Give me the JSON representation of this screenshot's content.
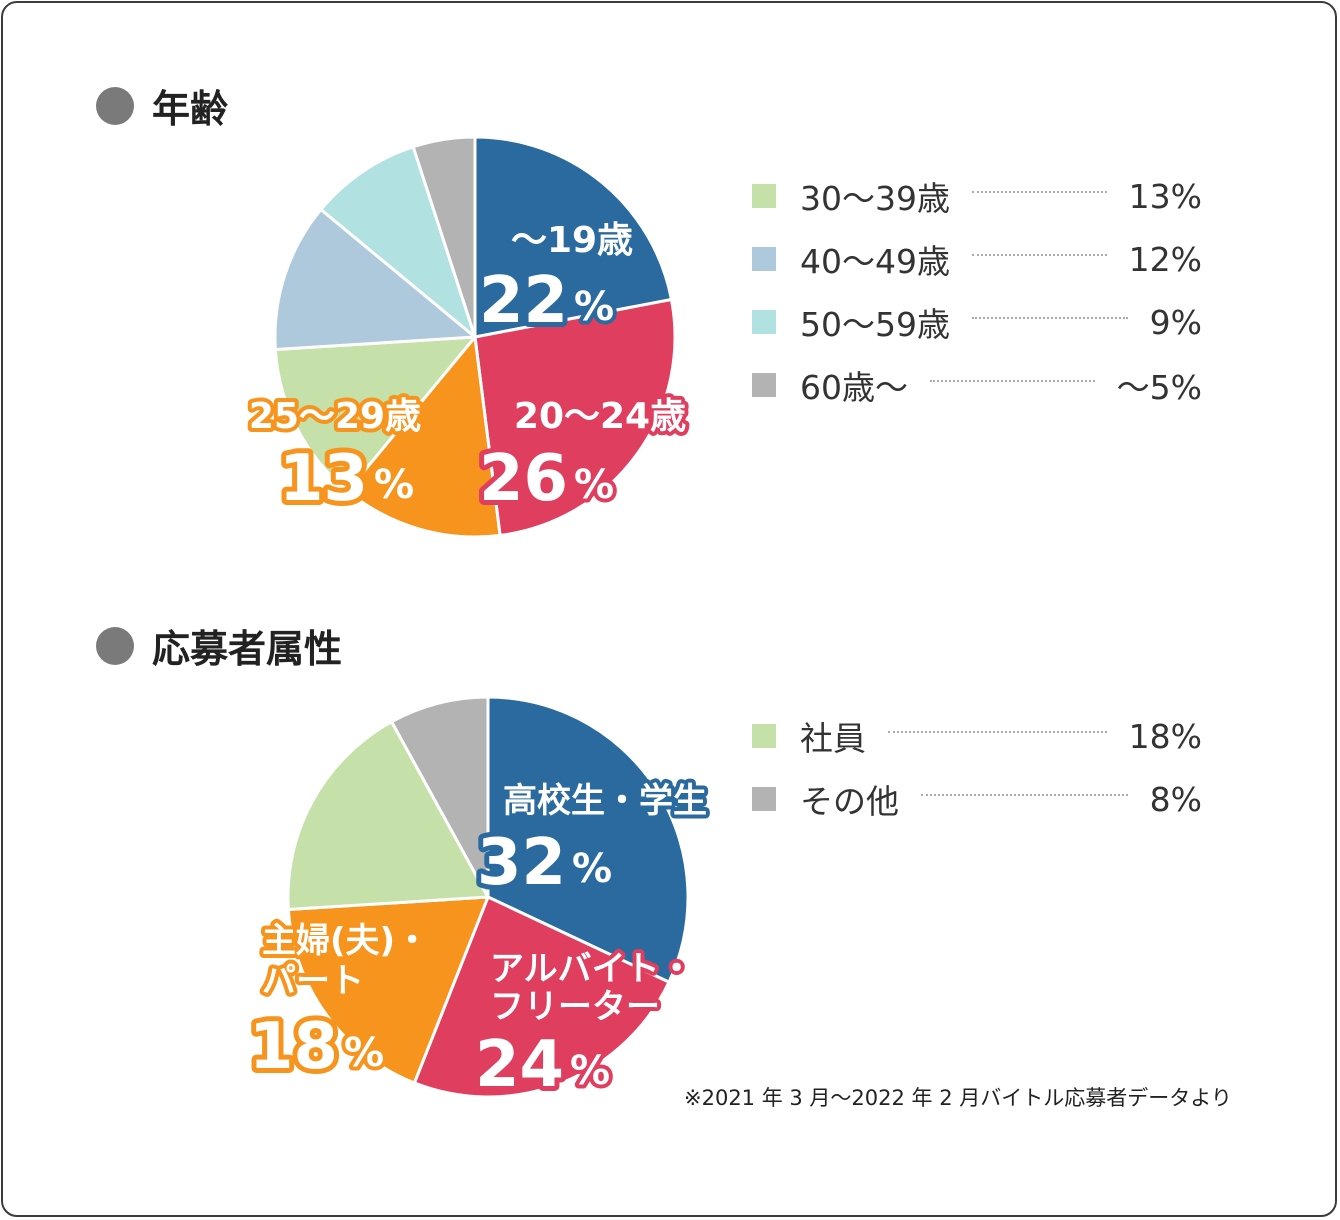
{
  "colors": {
    "blue": "#2a6a9e",
    "red": "#e03e5e",
    "orange": "#f7941d",
    "green": "#c5e1a9",
    "lightblue": "#aec8dc",
    "teal": "#b1e1e1",
    "gray": "#b3b3b3"
  },
  "age": {
    "title": "年齢",
    "legend": [
      {
        "label": "30〜39歳",
        "value": "13%",
        "color": "#c5e1a9"
      },
      {
        "label": "40〜49歳",
        "value": "12%",
        "color": "#aec8dc"
      },
      {
        "label": "50〜59歳",
        "value": "9%",
        "color": "#b1e1e1"
      },
      {
        "label": "60歳〜",
        "value": "〜5%",
        "color": "#b3b3b3"
      }
    ],
    "slice_labels": [
      {
        "name": "〜19歳",
        "pct": "22",
        "unit": "%"
      },
      {
        "name": "20〜24歳",
        "pct": "26",
        "unit": "%"
      },
      {
        "name": "25〜29歳",
        "pct": "13",
        "unit": "%"
      }
    ]
  },
  "attr": {
    "title": "応募者属性",
    "legend": [
      {
        "label": "社員",
        "value": "18%",
        "color": "#c5e1a9"
      },
      {
        "label": "その他",
        "value": "8%",
        "color": "#b3b3b3"
      }
    ],
    "slice_labels": [
      {
        "line1": "高校生・学生",
        "pct": "32",
        "unit": "%"
      },
      {
        "line1": "アルバイト・",
        "line2": "フリーター",
        "pct": "24",
        "unit": "%"
      },
      {
        "line1": "主婦(夫)・",
        "line2": "パート",
        "pct": "18",
        "unit": "%"
      }
    ]
  },
  "note": "※2021 年 3 月〜2022 年 2 月バイトル応募者データより",
  "chart_data": [
    {
      "type": "pie",
      "title": "年齢",
      "categories": [
        "〜19歳",
        "20〜24歳",
        "25〜29歳",
        "30〜39歳",
        "40〜49歳",
        "50〜59歳",
        "60歳〜"
      ],
      "values": [
        22,
        26,
        13,
        13,
        12,
        9,
        5
      ],
      "colors": [
        "#2a6a9e",
        "#e03e5e",
        "#f7941d",
        "#c5e1a9",
        "#aec8dc",
        "#b1e1e1",
        "#b3b3b3"
      ],
      "legend_position": "right"
    },
    {
      "type": "pie",
      "title": "応募者属性",
      "categories": [
        "高校生・学生",
        "アルバイト・フリーター",
        "主婦(夫)・パート",
        "社員",
        "その他"
      ],
      "values": [
        32,
        24,
        18,
        18,
        8
      ],
      "colors": [
        "#2a6a9e",
        "#e03e5e",
        "#f7941d",
        "#c5e1a9",
        "#b3b3b3"
      ],
      "legend_position": "right"
    }
  ]
}
